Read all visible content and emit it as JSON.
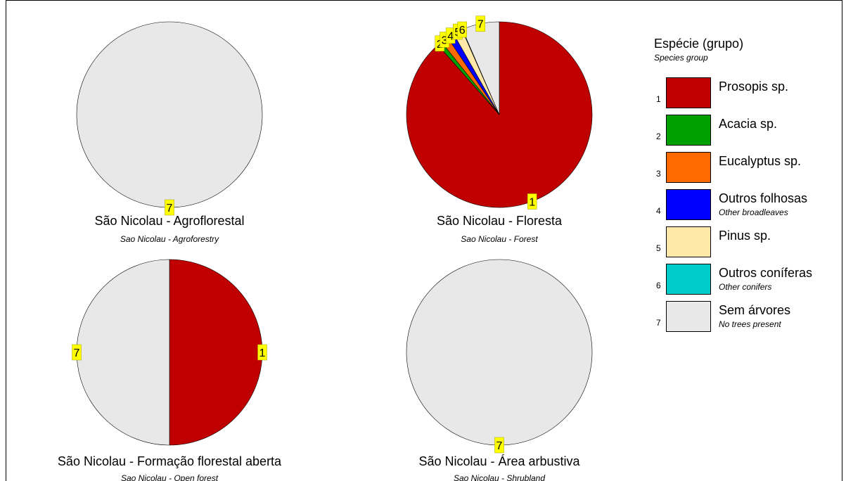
{
  "legend": {
    "title": "Espécie (grupo)",
    "subtitle": "Species group",
    "items": [
      {
        "num": "1",
        "label": "Prosopis sp.",
        "sub": "",
        "color": "#c00000"
      },
      {
        "num": "2",
        "label": "Acacia sp.",
        "sub": "",
        "color": "#00a000"
      },
      {
        "num": "3",
        "label": "Eucalyptus sp.",
        "sub": "",
        "color": "#ff6a00"
      },
      {
        "num": "4",
        "label": "Outros folhosas",
        "sub": "Other broadleaves",
        "color": "#0000ff"
      },
      {
        "num": "5",
        "label": "Pinus sp.",
        "sub": "",
        "color": "#ffe8a8"
      },
      {
        "num": "6",
        "label": "Outros coníferas",
        "sub": "Other conifers",
        "color": "#00cccc"
      },
      {
        "num": "7",
        "label": "Sem árvores",
        "sub": "No trees present",
        "color": "#e8e8e8"
      }
    ]
  },
  "chart_data": [
    {
      "type": "pie",
      "title": "São Nicolau - Agroflorestal",
      "subtitle": "Sao Nicolau - Agroforestry",
      "slices": [
        {
          "category": "7",
          "value": 100
        }
      ]
    },
    {
      "type": "pie",
      "title": "São Nicolau  - Floresta",
      "subtitle": "Sao Nicolau - Forest",
      "slices": [
        {
          "category": "1",
          "value": 88.5
        },
        {
          "category": "2",
          "value": 0.8
        },
        {
          "category": "3",
          "value": 1.3
        },
        {
          "category": "4",
          "value": 1.2
        },
        {
          "category": "5",
          "value": 1.6
        },
        {
          "category": "6",
          "value": 0.1
        },
        {
          "category": "7",
          "value": 6.5
        }
      ]
    },
    {
      "type": "pie",
      "title": "São Nicolau - Formação florestal aberta",
      "subtitle": "Sao Nicolau - Open forest",
      "slices": [
        {
          "category": "1",
          "value": 50
        },
        {
          "category": "7",
          "value": 50
        }
      ]
    },
    {
      "type": "pie",
      "title": "São Nicolau - Área arbustiva",
      "subtitle": "Sao Nicolau - Shrubland",
      "slices": [
        {
          "category": "7",
          "value": 100
        }
      ]
    }
  ]
}
